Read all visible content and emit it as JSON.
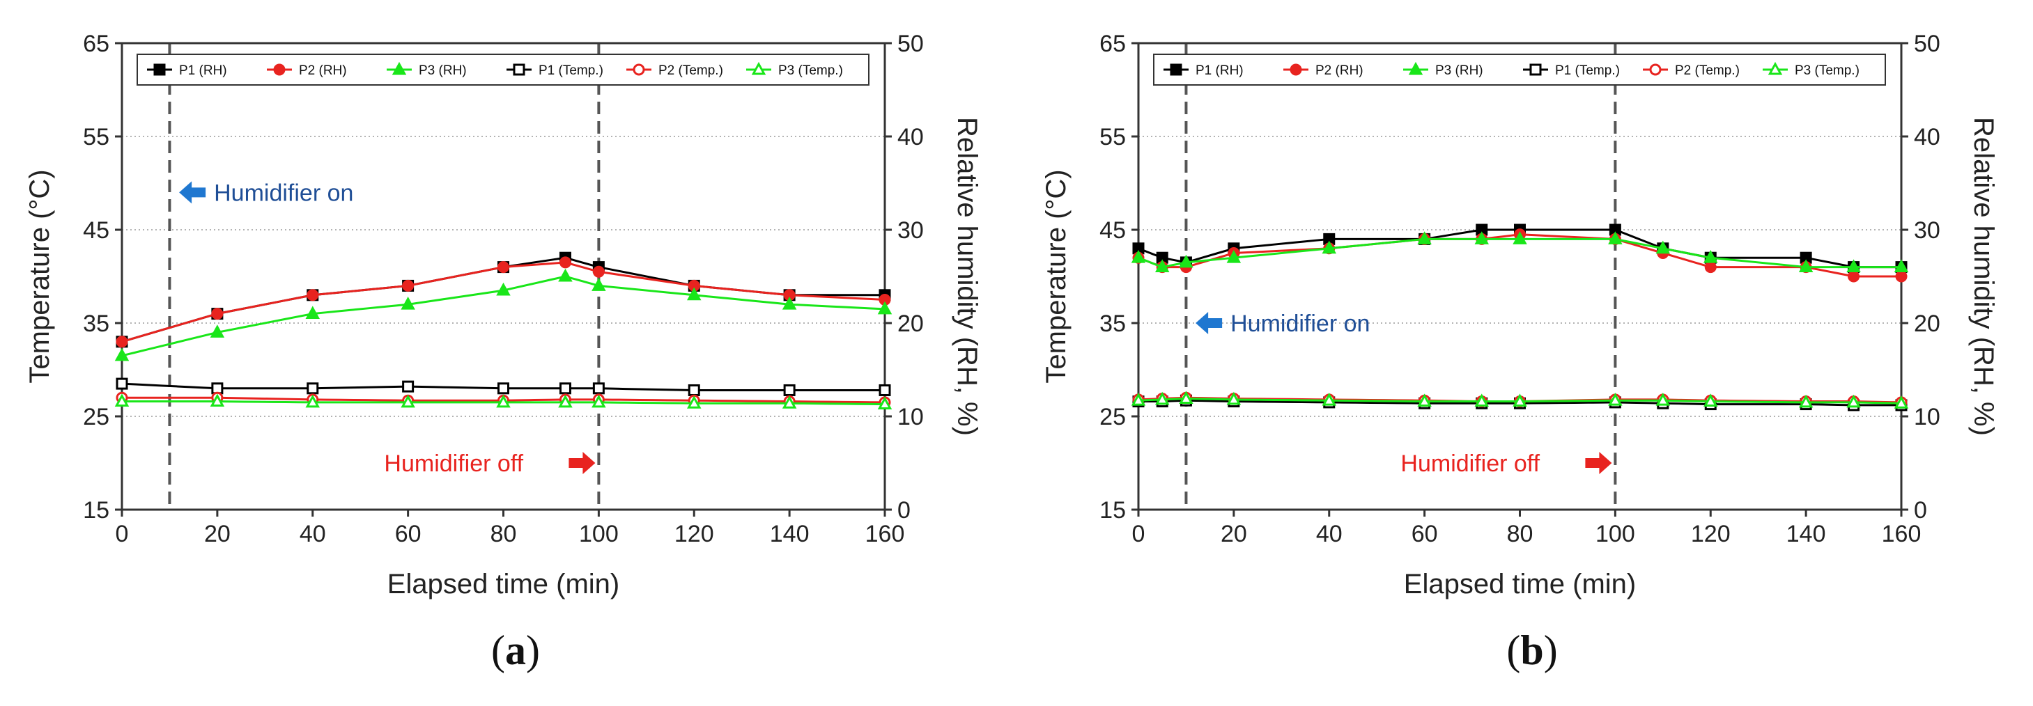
{
  "chart_data": [
    {
      "type": "line",
      "panel_label": "a",
      "xlabel": "Elapsed time (min)",
      "ylabel": "Temperature (°C)",
      "y2label": "Relative humidity (RH, %)",
      "xlim": [
        0,
        160
      ],
      "ylim": [
        15,
        65
      ],
      "y2lim": [
        0,
        50
      ],
      "xticks": [
        0,
        20,
        40,
        60,
        80,
        100,
        120,
        140,
        160
      ],
      "yticks": [
        15,
        25,
        35,
        45,
        55,
        65
      ],
      "y2ticks": [
        0,
        10,
        20,
        30,
        40,
        50
      ],
      "vlines": [
        10,
        100
      ],
      "legend_position": "top",
      "annotations": [
        {
          "text": "Humidifier on",
          "color": "#1f4e96",
          "arrow": "left",
          "arrow_color": "#1f77d0",
          "x": 12,
          "y": 49
        },
        {
          "text": "Humidifier off",
          "color": "#e8231f",
          "arrow": "right",
          "arrow_color": "#e8231f",
          "x": 55,
          "y": 20
        }
      ],
      "x": [
        0,
        20,
        40,
        60,
        80,
        93,
        100,
        120,
        140,
        160
      ],
      "series": [
        {
          "name": "P1 (RH)",
          "axis": "right",
          "color": "#000000",
          "marker": "square",
          "filled": true,
          "values": [
            18,
            21,
            23,
            24,
            26,
            27,
            26,
            24,
            23,
            23
          ]
        },
        {
          "name": "P2 (RH)",
          "axis": "right",
          "color": "#e8231f",
          "marker": "circle",
          "filled": true,
          "values": [
            18,
            21,
            23,
            24,
            26,
            26.5,
            25.5,
            24,
            23,
            22.5
          ]
        },
        {
          "name": "P3 (RH)",
          "axis": "right",
          "color": "#19e619",
          "marker": "triangle",
          "filled": true,
          "values": [
            16.5,
            19,
            21,
            22,
            23.5,
            25,
            24,
            23,
            22,
            21.5
          ]
        },
        {
          "name": "P1 (Temp.)",
          "axis": "left",
          "color": "#000000",
          "marker": "square",
          "filled": false,
          "values": [
            28.5,
            28,
            28,
            28.2,
            28,
            28,
            28,
            27.8,
            27.8,
            27.8
          ]
        },
        {
          "name": "P2 (Temp.)",
          "axis": "left",
          "color": "#e8231f",
          "marker": "circle",
          "filled": false,
          "values": [
            27,
            27,
            26.8,
            26.7,
            26.7,
            26.8,
            26.8,
            26.7,
            26.6,
            26.5
          ]
        },
        {
          "name": "P3 (Temp.)",
          "axis": "left",
          "color": "#19e619",
          "marker": "triangle",
          "filled": false,
          "values": [
            26.6,
            26.6,
            26.5,
            26.5,
            26.5,
            26.5,
            26.5,
            26.4,
            26.4,
            26.3
          ]
        }
      ]
    },
    {
      "type": "line",
      "panel_label": "b",
      "xlabel": "Elapsed time (min)",
      "ylabel": "Temperature (°C)",
      "y2label": "Relative humidity (RH, %)",
      "xlim": [
        0,
        160
      ],
      "ylim": [
        15,
        65
      ],
      "y2lim": [
        0,
        50
      ],
      "xticks": [
        0,
        20,
        40,
        60,
        80,
        100,
        120,
        140,
        160
      ],
      "yticks": [
        15,
        25,
        35,
        45,
        55,
        65
      ],
      "y2ticks": [
        0,
        10,
        20,
        30,
        40,
        50
      ],
      "vlines": [
        10,
        100
      ],
      "legend_position": "top",
      "annotations": [
        {
          "text": "Humidifier on",
          "color": "#1f4e96",
          "arrow": "left",
          "arrow_color": "#1f77d0",
          "x": 12,
          "y": 35
        },
        {
          "text": "Humidifier off",
          "color": "#e8231f",
          "arrow": "right",
          "arrow_color": "#e8231f",
          "x": 55,
          "y": 20
        }
      ],
      "x": [
        0,
        5,
        10,
        20,
        40,
        60,
        72,
        80,
        100,
        110,
        120,
        140,
        150,
        160
      ],
      "series": [
        {
          "name": "P1 (RH)",
          "axis": "right",
          "color": "#000000",
          "marker": "square",
          "filled": true,
          "values": [
            28,
            27,
            26.5,
            28,
            29,
            29,
            30,
            30,
            30,
            28,
            27,
            27,
            26,
            26
          ]
        },
        {
          "name": "P2 (RH)",
          "axis": "right",
          "color": "#e8231f",
          "marker": "circle",
          "filled": true,
          "values": [
            27,
            26,
            26,
            27.5,
            28,
            29,
            29,
            29.5,
            29,
            27.5,
            26,
            26,
            25,
            25
          ]
        },
        {
          "name": "P3 (RH)",
          "axis": "right",
          "color": "#19e619",
          "marker": "triangle",
          "filled": true,
          "values": [
            27,
            26,
            26.5,
            27,
            28,
            29,
            29,
            29,
            29,
            28,
            27,
            26,
            26,
            26
          ]
        },
        {
          "name": "P1 (Temp.)",
          "axis": "left",
          "color": "#000000",
          "marker": "square",
          "filled": false,
          "values": [
            26.6,
            26.6,
            26.7,
            26.6,
            26.5,
            26.4,
            26.4,
            26.4,
            26.5,
            26.4,
            26.3,
            26.3,
            26.2,
            26.2
          ]
        },
        {
          "name": "P2 (Temp.)",
          "axis": "left",
          "color": "#e8231f",
          "marker": "circle",
          "filled": false,
          "values": [
            26.8,
            26.9,
            27,
            26.9,
            26.8,
            26.7,
            26.6,
            26.6,
            26.8,
            26.8,
            26.7,
            26.6,
            26.6,
            26.5
          ]
        },
        {
          "name": "P3 (Temp.)",
          "axis": "left",
          "color": "#19e619",
          "marker": "triangle",
          "filled": false,
          "values": [
            26.7,
            26.8,
            26.9,
            26.8,
            26.7,
            26.6,
            26.6,
            26.6,
            26.7,
            26.7,
            26.6,
            26.5,
            26.5,
            26.4
          ]
        }
      ]
    }
  ]
}
